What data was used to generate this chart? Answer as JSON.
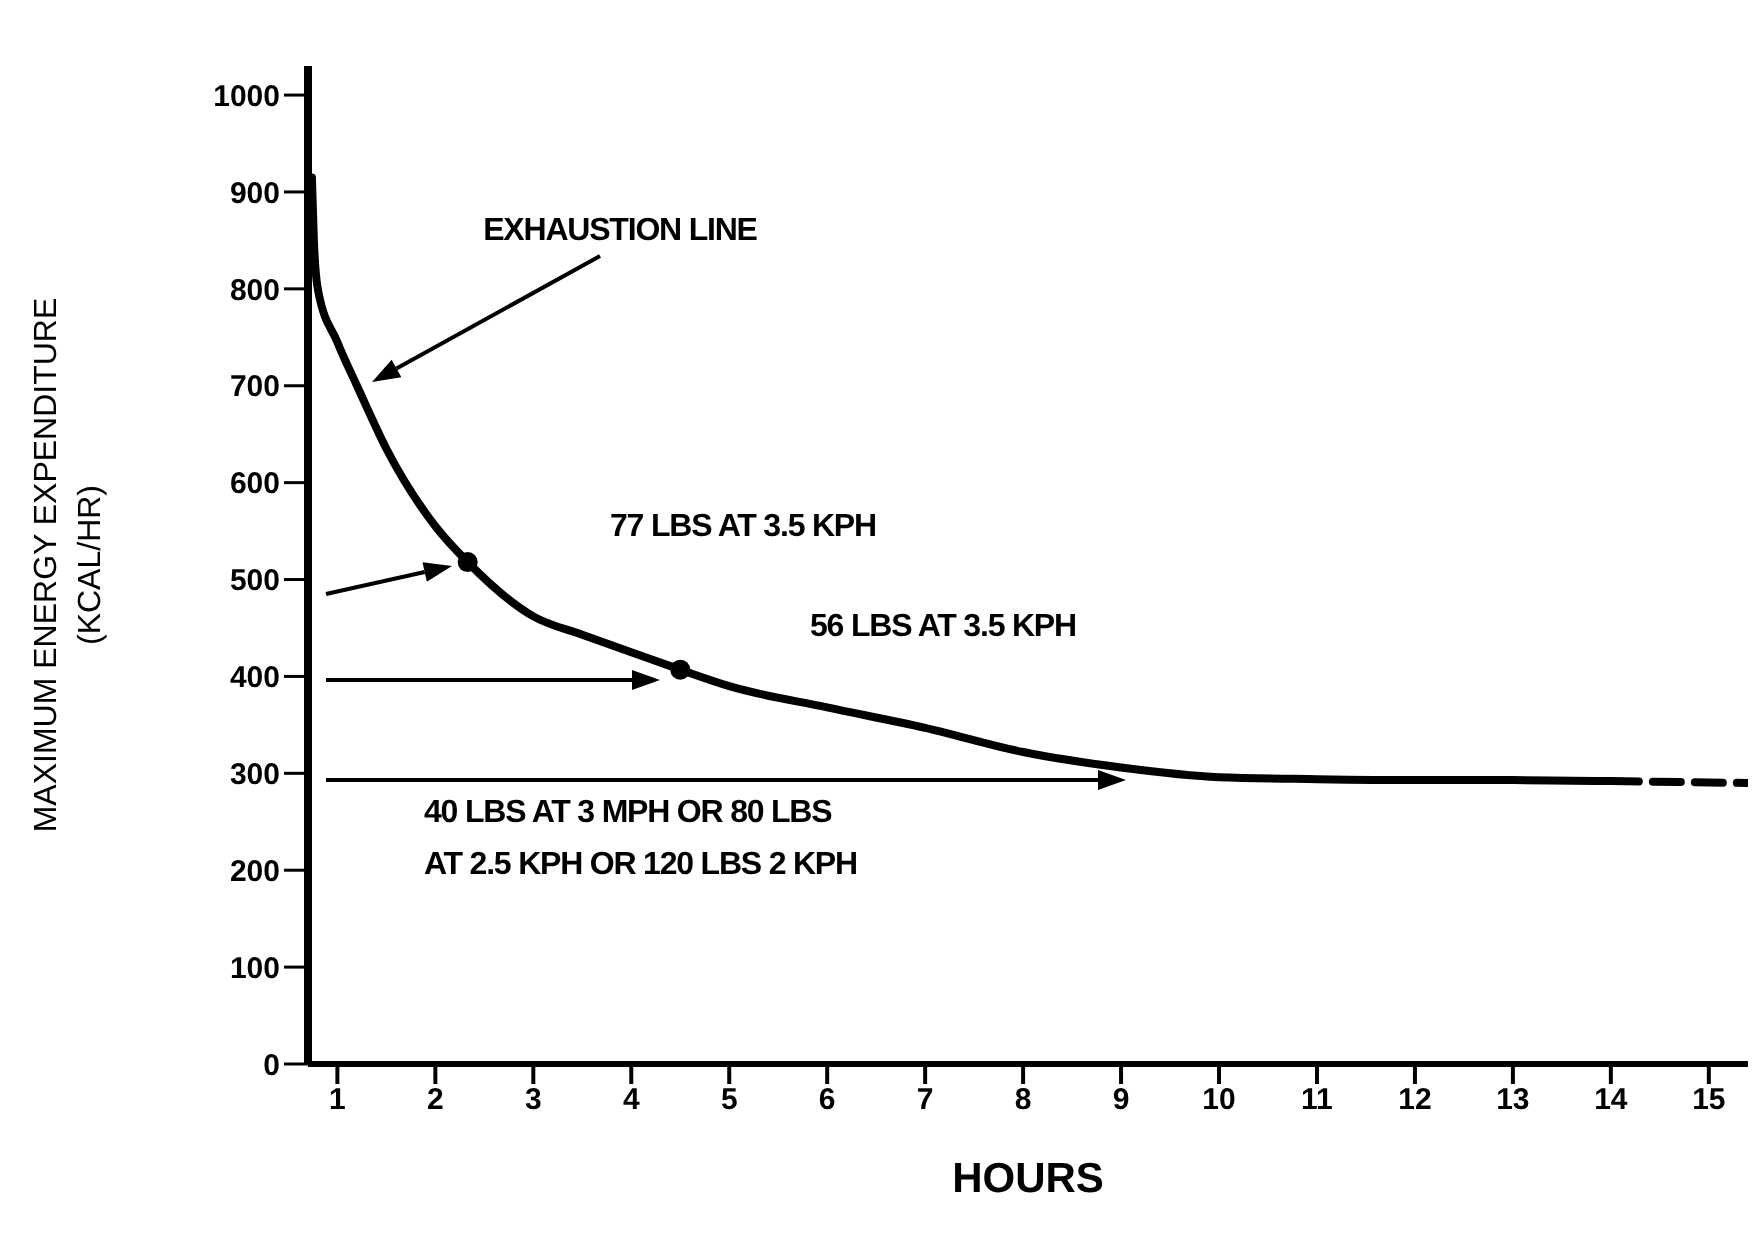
{
  "chart_data": {
    "type": "line",
    "xlabel": "HOURS",
    "ylabel": "MAXIMUM ENERGY EXPENDITURE\n(KCAL/HR)",
    "xlim": [
      0.7,
      15.4
    ],
    "xticks": [
      1,
      2,
      3,
      4,
      5,
      6,
      7,
      8,
      9,
      10,
      11,
      12,
      13,
      14,
      15
    ],
    "ylim": [
      0,
      1030
    ],
    "yticks": [
      0,
      100,
      200,
      300,
      400,
      500,
      600,
      700,
      800,
      900,
      1000
    ],
    "series": [
      {
        "color": "#000000",
        "line_style": "solid",
        "x": [
          0.74,
          0.76,
          0.8,
          1,
          1.2,
          1.5,
          2,
          2.33,
          3,
          3.5,
          4,
          4.5,
          5,
          6,
          7,
          8,
          9,
          10,
          11,
          12,
          13,
          14
        ],
        "values": [
          915,
          850,
          800,
          745,
          700,
          635,
          555,
          518,
          462,
          443,
          425,
          407,
          390,
          368,
          347,
          322,
          306,
          296,
          294,
          293,
          293,
          292
        ]
      },
      {
        "type": "line",
        "color": "#000000",
        "line_style": "dashed",
        "x": [
          14,
          15.4
        ],
        "values": [
          292,
          290
        ]
      },
      {
        "type": "scatter",
        "color": "#000000",
        "marker": "circle",
        "x": [
          2.33,
          4.5
        ],
        "values": [
          518,
          407
        ]
      }
    ],
    "annotations": [
      "EXHAUSTION LINE",
      "77 LBS AT 3.5 KPH",
      "56 LBS AT 3.5 KPH",
      "40 LBS AT 3 MPH OR 80 LBS\nAT 2.5 KPH OR 120 LBS 2 KPH"
    ]
  }
}
